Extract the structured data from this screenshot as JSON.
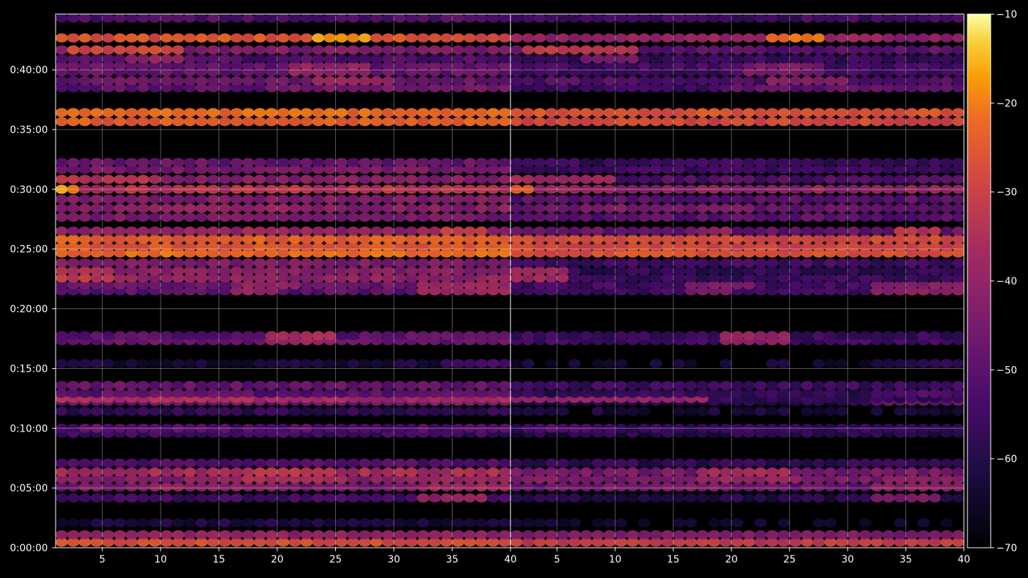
{
  "chart_data": {
    "type": "heatmap",
    "title": "",
    "xlabel": "",
    "ylabel": "",
    "grid": true,
    "panels": [
      {
        "name": "",
        "xlim": [
          1,
          40
        ],
        "x_ticks": [
          "5",
          "10",
          "15",
          "20",
          "25",
          "30",
          "35",
          "40"
        ]
      },
      {
        "name": "",
        "xlim": [
          1,
          40
        ],
        "x_ticks": [
          "5",
          "10",
          "15",
          "20",
          "25",
          "30",
          "35",
          "40"
        ]
      }
    ],
    "y_axis": {
      "range_seconds": [
        0,
        2680
      ],
      "ticks": [
        "0:00:00",
        "0:05:00",
        "0:10:00",
        "0:15:00",
        "0:20:00",
        "0:25:00",
        "0:30:00",
        "0:35:00",
        "0:40:00"
      ]
    },
    "colorbar": {
      "range": [
        -70,
        -10
      ],
      "ticks": [
        "−10",
        "−20",
        "−30",
        "−40",
        "−50",
        "−60",
        "−70"
      ],
      "colormap": "inferno"
    },
    "bands": [
      {
        "t": 28,
        "panels": [
          -43,
          -47
        ],
        "hot": [
          [
            0,
            40,
            -27
          ]
        ]
      },
      {
        "t": 65,
        "panels": [
          -48,
          -52
        ],
        "hot": [
          [
            0,
            40,
            -40
          ]
        ]
      },
      {
        "t": 125,
        "panels": [
          -62,
          -66
        ],
        "hot": []
      },
      {
        "t": 250,
        "panels": [
          -55,
          -60
        ],
        "hot": [
          [
            33,
            38,
            -40
          ]
        ]
      },
      {
        "t": 305,
        "panels": [
          -45,
          -48
        ],
        "hot": [
          [
            10,
            20,
            -40
          ],
          [
            33,
            40,
            -38
          ]
        ]
      },
      {
        "t": 345,
        "panels": [
          -42,
          -44
        ],
        "hot": [
          [
            18,
            26,
            -35
          ],
          [
            34,
            40,
            -38
          ]
        ]
      },
      {
        "t": 380,
        "panels": [
          -36,
          -45
        ],
        "hot": [
          [
            18,
            25,
            -32
          ]
        ]
      },
      {
        "t": 425,
        "panels": [
          -52,
          -58
        ],
        "hot": []
      },
      {
        "t": 575,
        "panels": [
          -55,
          -60
        ],
        "hot": []
      },
      {
        "t": 600,
        "panels": [
          -52,
          -57
        ],
        "hot": [
          [
            4,
            10,
            -48
          ]
        ]
      },
      {
        "t": 685,
        "panels": [
          -58,
          -63
        ],
        "hot": []
      },
      {
        "t": 735,
        "panels": [
          -48,
          -60
        ],
        "hot": [
          [
            33,
            40,
            -45
          ]
        ]
      },
      {
        "t": 750,
        "panels": [
          -38,
          -58
        ],
        "hot": [
          [
            2,
            18,
            -35
          ]
        ]
      },
      {
        "t": 775,
        "panels": [
          -50,
          -58
        ],
        "hot": [
          [
            33,
            40,
            -48
          ]
        ]
      },
      {
        "t": 815,
        "panels": [
          -48,
          -55
        ],
        "hot": []
      },
      {
        "t": 925,
        "panels": [
          -62,
          -64
        ],
        "hot": [
          [
            35,
            40,
            -55
          ]
        ]
      },
      {
        "t": 1040,
        "panels": [
          -48,
          -55
        ],
        "hot": [
          [
            20,
            25,
            -38
          ]
        ]
      },
      {
        "t": 1065,
        "panels": [
          -50,
          -56
        ],
        "hot": [
          [
            20,
            25,
            -36
          ]
        ]
      },
      {
        "t": 1290,
        "panels": [
          -50,
          -55
        ],
        "hot": [
          [
            33,
            40,
            -37
          ],
          [
            17,
            20,
            -40
          ]
        ]
      },
      {
        "t": 1320,
        "panels": [
          -47,
          -55
        ],
        "hot": [
          [
            17,
            22,
            -40
          ],
          [
            33,
            40,
            -38
          ]
        ]
      },
      {
        "t": 1355,
        "panels": [
          -40,
          -56
        ],
        "hot": [
          [
            1,
            6,
            -32
          ]
        ]
      },
      {
        "t": 1390,
        "panels": [
          -42,
          -58
        ],
        "hot": [
          [
            1,
            6,
            -34
          ]
        ]
      },
      {
        "t": 1430,
        "panels": [
          -44,
          -55
        ],
        "hot": []
      },
      {
        "t": 1480,
        "panels": [
          -27,
          -35
        ],
        "hot": [
          [
            1,
            40,
            -22
          ]
        ]
      },
      {
        "t": 1510,
        "panels": [
          -30,
          -36
        ],
        "hot": [
          [
            1,
            40,
            -25
          ]
        ]
      },
      {
        "t": 1550,
        "panels": [
          -32,
          -38
        ],
        "hot": [
          [
            1,
            40,
            -24
          ]
        ]
      },
      {
        "t": 1590,
        "panels": [
          -40,
          -48
        ],
        "hot": [
          [
            18,
            20,
            -36
          ],
          [
            35,
            38,
            -30
          ]
        ]
      },
      {
        "t": 1660,
        "panels": [
          -45,
          -50
        ],
        "hot": []
      },
      {
        "t": 1705,
        "panels": [
          -42,
          -48
        ],
        "hot": [
          [
            8,
            22,
            -40
          ]
        ]
      },
      {
        "t": 1750,
        "panels": [
          -43,
          -50
        ],
        "hot": []
      },
      {
        "t": 1800,
        "panels": [
          -34,
          -40
        ],
        "hot": [
          [
            1,
            3,
            -18
          ]
        ]
      },
      {
        "t": 1850,
        "panels": [
          -42,
          -52
        ],
        "hot": [
          [
            1,
            10,
            -34
          ]
        ]
      },
      {
        "t": 1900,
        "panels": [
          -45,
          -55
        ],
        "hot": []
      },
      {
        "t": 1935,
        "panels": [
          -48,
          -56
        ],
        "hot": []
      },
      {
        "t": 2140,
        "panels": [
          -28,
          -34
        ],
        "hot": [
          [
            1,
            40,
            -24
          ]
        ]
      },
      {
        "t": 2185,
        "panels": [
          -26,
          -36
        ],
        "hot": [
          [
            1,
            40,
            -22
          ]
        ]
      },
      {
        "t": 2310,
        "panels": [
          -50,
          -56
        ],
        "hot": [
          [
            20,
            40,
            -45
          ]
        ]
      },
      {
        "t": 2345,
        "panels": [
          -47,
          -52
        ],
        "hot": [
          [
            24,
            30,
            -38
          ]
        ]
      },
      {
        "t": 2390,
        "panels": [
          -48,
          -55
        ],
        "hot": [
          [
            22,
            28,
            -40
          ]
        ]
      },
      {
        "t": 2420,
        "panels": [
          -48,
          -54
        ],
        "hot": [
          [
            22,
            28,
            -40
          ]
        ]
      },
      {
        "t": 2455,
        "panels": [
          -52,
          -56
        ],
        "hot": [
          [
            8,
            12,
            -40
          ]
        ]
      },
      {
        "t": 2500,
        "panels": [
          -44,
          -50
        ],
        "hot": [
          [
            3,
            12,
            -28
          ]
        ]
      },
      {
        "t": 2560,
        "panels": [
          -26,
          -40
        ],
        "hot": [
          [
            24,
            28,
            -18
          ]
        ]
      },
      {
        "t": 2660,
        "panels": [
          -52,
          -55
        ],
        "hot": []
      }
    ]
  }
}
